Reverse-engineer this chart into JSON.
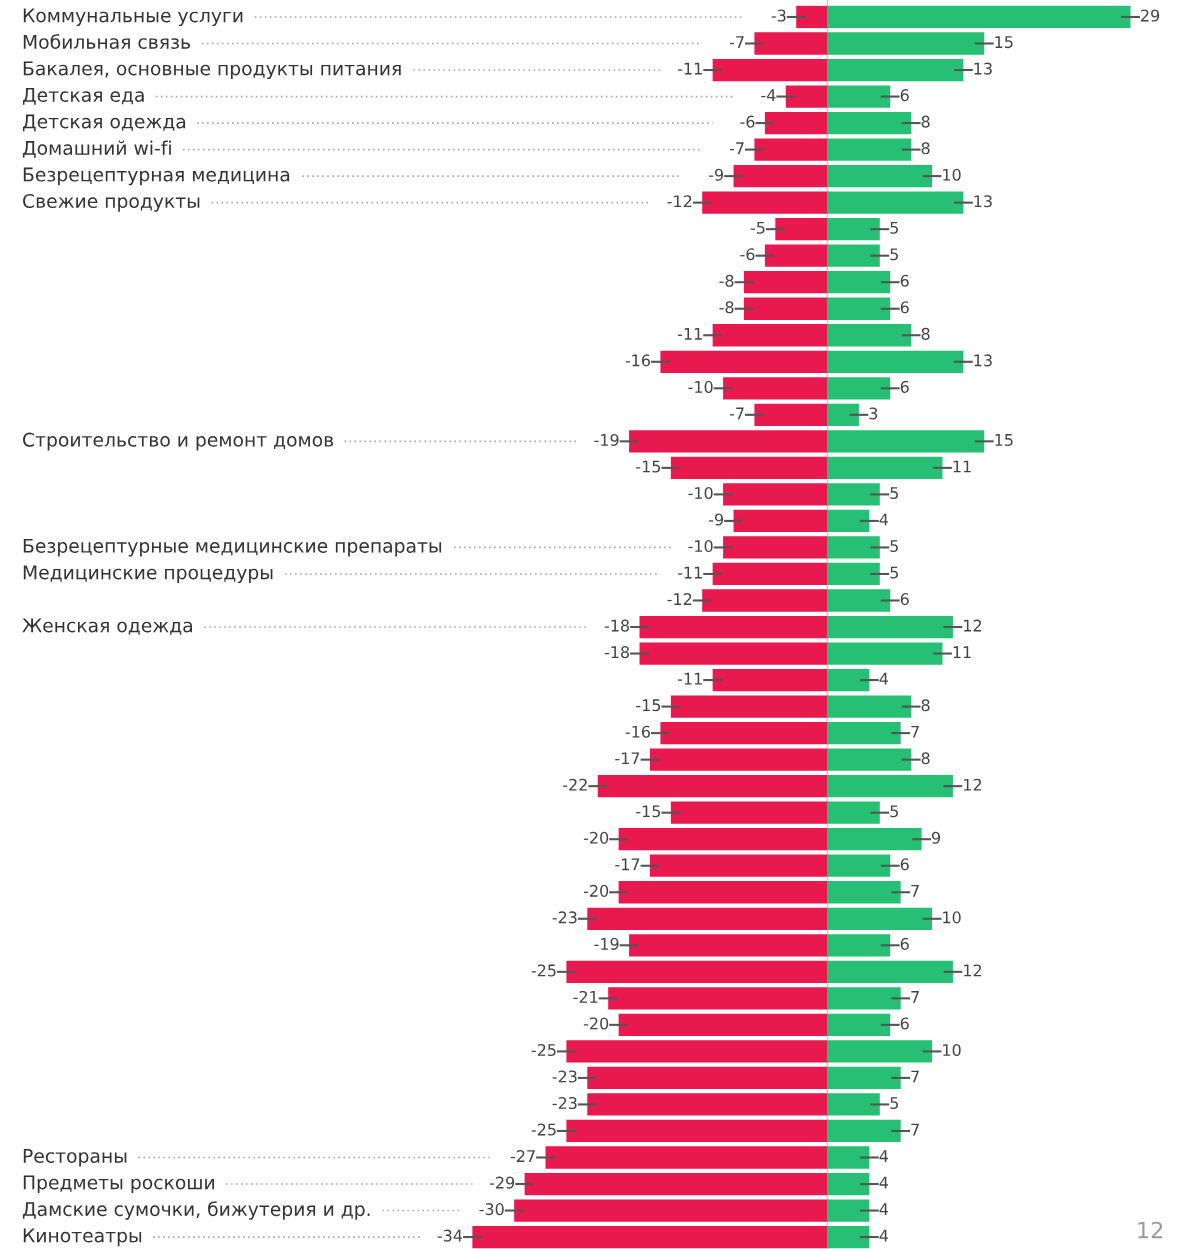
{
  "chart_data": {
    "type": "bar",
    "orientation": "horizontal",
    "stacked": true,
    "data_labels": true,
    "categories": [
      "Коммунальные услуги",
      "Мобильная связь",
      "Бакалея, основные продукты питания",
      "Детская еда",
      "Детская одежда",
      "Домашний wi-fi",
      "Безрецептурная медицина",
      "Свежие продукты",
      null,
      null,
      null,
      null,
      null,
      null,
      null,
      null,
      "Строительство и ремонт домов",
      null,
      null,
      null,
      "Безрецептурные медицинские препараты",
      "Медицинские процедуры",
      null,
      "Женская одежда",
      null,
      null,
      null,
      null,
      null,
      null,
      null,
      null,
      null,
      null,
      null,
      null,
      null,
      null,
      null,
      null,
      null,
      null,
      null,
      "Рестораны",
      "Предметы роскоши",
      "Дамские сумочки, бижутерия и др.",
      "Кинотеатры"
    ],
    "series": [
      {
        "color": "#e8194f",
        "values": [
          -3,
          -7,
          -11,
          -4,
          -6,
          -7,
          -9,
          -12,
          -5,
          -6,
          -8,
          -8,
          -11,
          -16,
          -10,
          -7,
          -19,
          -15,
          -10,
          -9,
          -10,
          -11,
          -12,
          -18,
          -18,
          -11,
          -15,
          -16,
          -17,
          -22,
          -15,
          -20,
          -17,
          -20,
          -23,
          -19,
          -25,
          -21,
          -20,
          -25,
          -23,
          -23,
          -25,
          -27,
          -29,
          -30,
          -34
        ]
      },
      {
        "color": "#26bf73",
        "values": [
          29,
          15,
          13,
          6,
          8,
          8,
          10,
          13,
          5,
          5,
          6,
          6,
          8,
          13,
          6,
          3,
          15,
          11,
          5,
          4,
          5,
          5,
          6,
          12,
          11,
          4,
          8,
          7,
          8,
          12,
          5,
          9,
          6,
          7,
          10,
          6,
          12,
          7,
          6,
          10,
          7,
          5,
          7,
          4,
          4,
          4,
          4
        ]
      }
    ],
    "ref_lines": [
      {
        "axis": "x",
        "value": 0,
        "color": "#c8c8c8"
      }
    ],
    "annotations": [
      "12"
    ]
  }
}
